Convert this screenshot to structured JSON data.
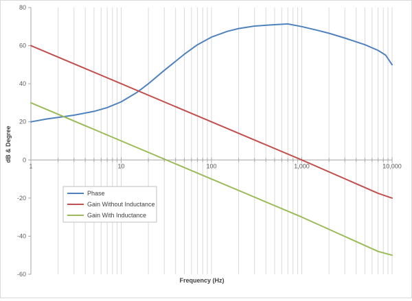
{
  "chart_data": {
    "type": "line",
    "title": "",
    "xlabel": "Frequency (Hz)",
    "ylabel": "dB & Degree",
    "xscale": "log",
    "xlim": [
      1,
      10000
    ],
    "ylim": [
      -60,
      80
    ],
    "grid": "on",
    "legend_position": "bottom-left",
    "x_tick_labels": [
      "1",
      "10",
      "100",
      "1,000",
      "10,000"
    ],
    "y_tick_labels": [
      "-60",
      "-40",
      "-20",
      "0",
      "20",
      "40",
      "60",
      "80"
    ],
    "series": [
      {
        "name": "Phase",
        "color": "#4f81bd",
        "x": [
          1,
          1.5,
          2,
          3,
          5,
          7,
          10,
          15,
          20,
          30,
          50,
          70,
          100,
          150,
          200,
          300,
          500,
          700,
          1000,
          1500,
          2000,
          3000,
          5000,
          7000,
          8500,
          10000
        ],
        "y": [
          20,
          21.5,
          22.3,
          23.5,
          25.5,
          27.5,
          30.5,
          35.5,
          40,
          47,
          55.5,
          60.5,
          64.5,
          67.5,
          69,
          70.3,
          71,
          71.4,
          70,
          68,
          66.5,
          64,
          60.5,
          57.5,
          55,
          50
        ]
      },
      {
        "name": "Gain Without Inductance",
        "color": "#c0504d",
        "x": [
          1,
          10,
          100,
          1000,
          7000,
          10000
        ],
        "y": [
          60,
          40,
          20,
          0,
          -17.5,
          -20
        ]
      },
      {
        "name": "Gain With Inductance",
        "color": "#9bbb59",
        "x": [
          1,
          10,
          100,
          1000,
          7000,
          10000
        ],
        "y": [
          30,
          10,
          -10,
          -30,
          -48,
          -50
        ]
      }
    ]
  }
}
